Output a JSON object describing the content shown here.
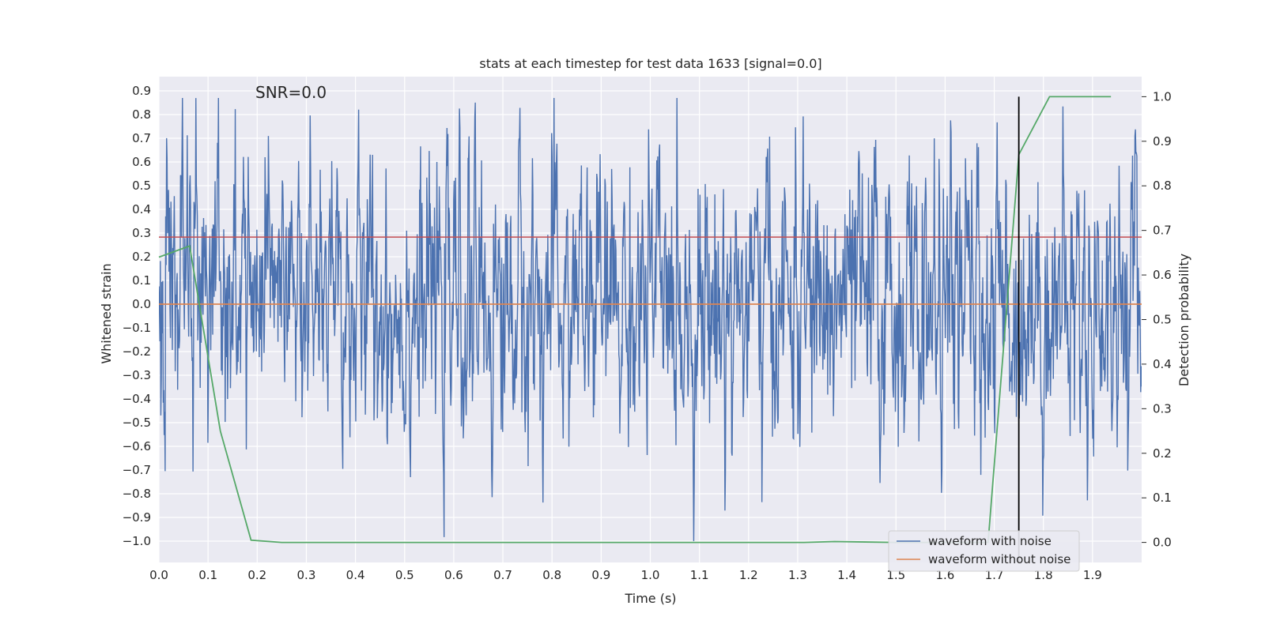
{
  "chart_data": {
    "type": "line",
    "title": "stats at each timestep for test data 1633 [signal=0.0]",
    "xlabel": "Time (s)",
    "ylabel": "Whitened strain",
    "y2label": "Detection probability",
    "annotation": "SNR=0.0",
    "xlim": [
      0.0,
      2.0
    ],
    "ylim": [
      -1.09,
      0.96
    ],
    "y2lim": [
      -0.045,
      1.045
    ],
    "x_ticks": [
      "0.0",
      "0.1",
      "0.2",
      "0.3",
      "0.4",
      "0.5",
      "0.6",
      "0.7",
      "0.8",
      "0.9",
      "1.0",
      "1.1",
      "1.2",
      "1.3",
      "1.4",
      "1.5",
      "1.6",
      "1.7",
      "1.8",
      "1.9"
    ],
    "y_ticks": [
      "0.9",
      "0.8",
      "0.7",
      "0.6",
      "0.5",
      "0.4",
      "0.3",
      "0.2",
      "0.1",
      "0.0",
      "−0.1",
      "−0.2",
      "−0.3",
      "−0.4",
      "−0.5",
      "−0.6",
      "−0.7",
      "−0.8",
      "−0.9",
      "−1.0"
    ],
    "y2_ticks": [
      "1.0",
      "0.9",
      "0.8",
      "0.7",
      "0.6",
      "0.5",
      "0.4",
      "0.3",
      "0.2",
      "0.1",
      "0.0"
    ],
    "grid": true,
    "legend_position": "lower-right",
    "colors": {
      "noise": "#4c72b0",
      "clean": "#dd8452",
      "prob": "#55a868",
      "threshold": "#c44e52",
      "vline": "#000000",
      "bg": "#eaeaf2"
    },
    "series": [
      {
        "name": "waveform with noise",
        "axis": "left",
        "x_range": [
          0.0,
          2.0
        ],
        "samples": 2048,
        "note_summary": "noise-dominated whitened strain, mostly between -0.7 and 0.7 with spikes to 0.87 and -1.0"
      },
      {
        "name": "waveform without noise",
        "axis": "left",
        "x": [
          0.0,
          2.0
        ],
        "y": [
          0.0,
          0.0
        ]
      },
      {
        "axis": "right",
        "x": [
          0.0,
          0.0625,
          0.125,
          0.1875,
          0.25,
          0.3125,
          0.375,
          0.4375,
          0.5,
          0.5625,
          0.625,
          0.6875,
          0.75,
          0.8125,
          0.875,
          0.9375,
          1.0,
          1.0625,
          1.125,
          1.1875,
          1.25,
          1.3125,
          1.375,
          1.4375,
          1.5,
          1.5625,
          1.625,
          1.6875,
          1.75,
          1.8125,
          1.875,
          1.9375
        ],
        "y": [
          0.64,
          0.665,
          0.25,
          0.005,
          0.0,
          0.0,
          0.0,
          0.0,
          0.0,
          0.0,
          0.0,
          0.0,
          0.0,
          0.0,
          0.0,
          0.0,
          0.0,
          0.0,
          0.0,
          0.0,
          0.0,
          0.0,
          0.002,
          0.001,
          0.0,
          0.0,
          0.0,
          0.0,
          0.87,
          1.0,
          1.0,
          1.0
        ]
      }
    ],
    "threshold_y": 0.685,
    "vline_x": 1.75
  },
  "legend": [
    {
      "label": "waveform with noise"
    },
    {
      "label": "waveform without noise"
    }
  ]
}
